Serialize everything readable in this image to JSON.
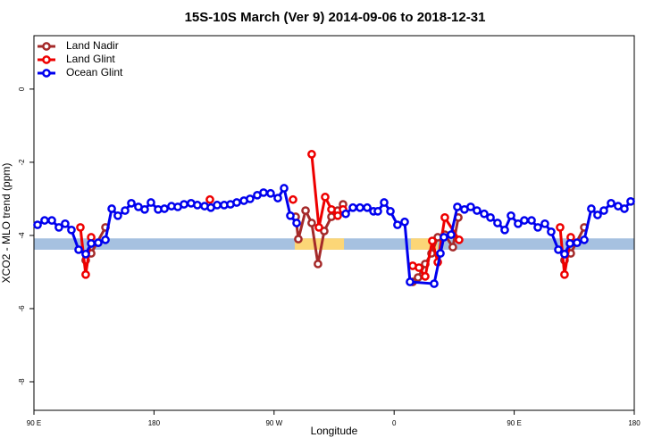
{
  "chart_data": {
    "type": "line",
    "title": "15S-10S March (Ver 9)   2014-09-06 to 2018-12-31",
    "xlabel": "Longitude",
    "ylabel": "XCO2 - MLO trend (ppm)",
    "xlim": [
      90,
      540
    ],
    "ylim": [
      -8.78,
      1.46
    ],
    "xticks": [
      {
        "value": 90,
        "label": "90 E"
      },
      180,
      {
        "value": 270,
        "label": "90 W"
      },
      {
        "value": 360,
        "label": "0"
      },
      {
        "value": 450,
        "label": "90 E"
      },
      {
        "value": 540,
        "label": "180"
      }
    ],
    "yticks": [
      0,
      -2,
      -4,
      -6,
      -8
    ],
    "legend": "top-left",
    "band": {
      "y": [
        -4.39,
        -4.08
      ],
      "color": "#a6c1e0"
    },
    "highlights": {
      "color": "#fcd677",
      "ranges": [
        [
          285.5,
          322.4
        ],
        [
          372.6,
          392.7
        ]
      ]
    },
    "series": [
      {
        "name": "Land Nadir",
        "color": "#a52a2a",
        "x": [
          128.8,
          132.9,
          143.6,
          null,
          286.2,
          288.2,
          293.6,
          298.2,
          302.9,
          307.6,
          313.0,
          317.7,
          321.7,
          null,
          373.9,
          377.9,
          383.3,
          388.0,
          392.7,
          398.0,
          404.0,
          408.1,
          null,
          487.7,
          492.4,
          502.5
        ],
        "values": [
          -4.68,
          -4.49,
          -3.78,
          null,
          -3.49,
          -4.1,
          -3.32,
          -3.66,
          -4.78,
          -3.88,
          -3.49,
          -3.32,
          -3.15,
          null,
          -5.27,
          -5.15,
          -4.78,
          -4.49,
          -4.05,
          -3.98,
          -4.32,
          -3.51,
          null,
          -4.68,
          -4.49,
          -3.78
        ]
      },
      {
        "name": "Land Glint",
        "color": "#ee0000",
        "x": [
          124.8,
          128.8,
          132.9,
          null,
          221.9,
          null,
          284.2,
          null,
          298.2,
          303.6,
          308.3,
          313.0,
          317.7,
          321.7,
          null,
          373.9,
          378.6,
          383.3,
          388.6,
          392.7,
          398.0,
          408.7,
          null,
          484.4,
          487.7,
          492.4
        ],
        "values": [
          -3.78,
          -5.07,
          -4.05,
          null,
          -3.02,
          null,
          -3.02,
          null,
          -1.78,
          -3.78,
          -2.95,
          -3.29,
          -3.46,
          -3.29,
          null,
          -4.83,
          -4.88,
          -5.12,
          -4.15,
          -4.73,
          -3.51,
          -4.12,
          null,
          -3.78,
          -5.07,
          -4.05
        ]
      },
      {
        "name": "Ocean Glint",
        "color": "#0000ee",
        "x": [
          92.7,
          98.0,
          103.4,
          108.7,
          113.4,
          118.1,
          123.5,
          128.8,
          132.9,
          138.2,
          143.6,
          148.3,
          152.9,
          158.3,
          163.0,
          168.3,
          173.0,
          177.7,
          183.1,
          187.8,
          193.1,
          197.8,
          202.5,
          207.8,
          212.5,
          217.9,
          222.6,
          227.3,
          232.6,
          237.3,
          242.0,
          247.4,
          252.0,
          257.4,
          262.1,
          267.4,
          272.8,
          277.5,
          282.2,
          286.9,
          null,
          323.7,
          329.1,
          334.4,
          339.8,
          344.5,
          347.8,
          352.5,
          357.2,
          362.5,
          367.9,
          371.9,
          390.0,
          394.7,
          397.3,
          402.7,
          407.4,
          412.7,
          417.4,
          422.1,
          427.5,
          432.2,
          437.5,
          442.9,
          447.6,
          452.9,
          457.6,
          463.0,
          467.7,
          473.0,
          477.7,
          483.1,
          487.7,
          491.8,
          497.1,
          502.5,
          507.8,
          512.5,
          517.2,
          522.6,
          527.9,
          532.6,
          537.3
        ],
        "values": [
          -3.71,
          -3.59,
          -3.59,
          -3.78,
          -3.68,
          -3.85,
          -4.39,
          -4.51,
          -4.22,
          -4.2,
          -4.12,
          -3.27,
          -3.46,
          -3.32,
          -3.12,
          -3.22,
          -3.29,
          -3.1,
          -3.29,
          -3.27,
          -3.2,
          -3.22,
          -3.15,
          -3.12,
          -3.17,
          -3.2,
          -3.24,
          -3.17,
          -3.17,
          -3.15,
          -3.1,
          -3.05,
          -3.0,
          -2.9,
          -2.83,
          -2.85,
          -2.98,
          -2.71,
          -3.46,
          -3.66,
          null,
          -3.41,
          -3.24,
          -3.24,
          -3.24,
          -3.34,
          -3.34,
          -3.1,
          -3.34,
          -3.71,
          -3.63,
          -5.27,
          -5.32,
          -4.49,
          -4.05,
          -3.98,
          -3.22,
          -3.29,
          -3.22,
          -3.32,
          -3.41,
          -3.51,
          -3.66,
          -3.85,
          -3.46,
          -3.68,
          -3.59,
          -3.59,
          -3.78,
          -3.68,
          -3.9,
          -4.39,
          -4.51,
          -4.22,
          -4.2,
          -4.12,
          -3.27,
          -3.44,
          -3.32,
          -3.12,
          -3.2,
          -3.27,
          -3.07
        ]
      }
    ]
  }
}
